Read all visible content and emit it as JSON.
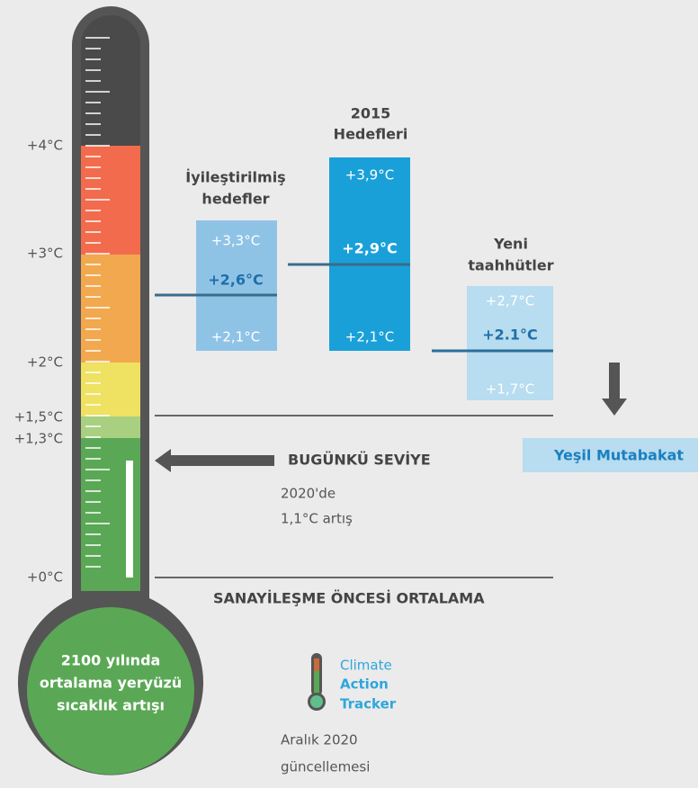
{
  "scale": {
    "labels": [
      "+4°C",
      "+3°C",
      "+2°C",
      "+1,5°C",
      "+1,3°C",
      "+0°C"
    ]
  },
  "thermometer": {
    "caption": [
      "2100 yılında",
      "ortalama yeryüzü",
      "sıcaklık artışı"
    ]
  },
  "groups": [
    {
      "title": [
        "İyileştirilmiş",
        "hedefler"
      ],
      "high": "+3,3°C",
      "mid": "+2,6°C",
      "low": "+2,1°C"
    },
    {
      "title": [
        "2015",
        "Hedefleri"
      ],
      "high": "+3,9°C",
      "mid": "+2,9°C",
      "low": "+2,1°C"
    },
    {
      "title": [
        "Yeni",
        "taahhütler"
      ],
      "high": "+2,7°C",
      "mid": "+2.1°C",
      "low": "+1,7°C"
    }
  ],
  "green_deal": "Yeşil Mutabakat",
  "current": {
    "title": "BUGÜNKÜ SEVİYE",
    "note": [
      "2020'de",
      "1,1°C artış"
    ]
  },
  "baseline": "SANAYİLEŞME ÖNCESİ ORTALAMA",
  "logo": [
    "Climate",
    "Action",
    "Tracker"
  ],
  "footer": [
    "Aralık 2020",
    "güncellemesi"
  ]
}
